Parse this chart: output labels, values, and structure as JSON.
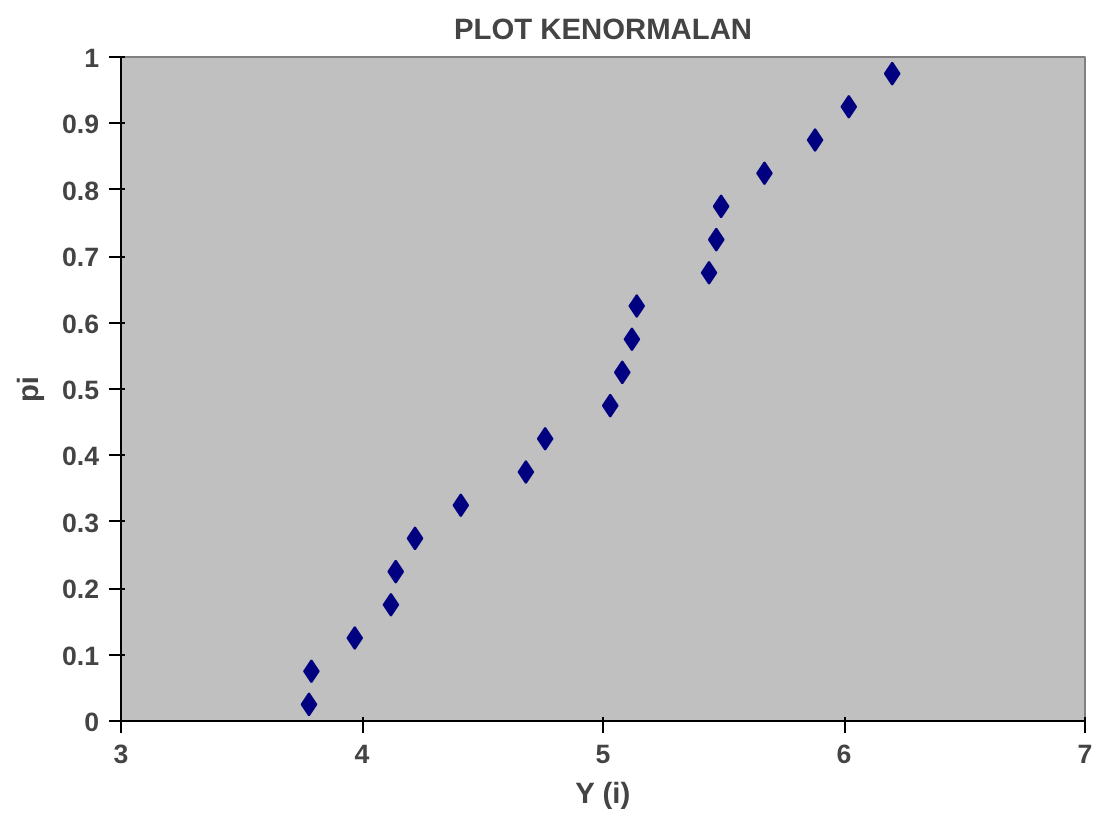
{
  "chart_data": {
    "type": "scatter",
    "title": "PLOT KENORMALAN",
    "xlabel": "Y (i)",
    "ylabel": "pi",
    "x": [
      3.78,
      3.79,
      3.97,
      4.12,
      4.14,
      4.22,
      4.41,
      4.68,
      4.76,
      5.03,
      5.08,
      5.12,
      5.14,
      5.44,
      5.47,
      5.49,
      5.67,
      5.88,
      6.02,
      6.2
    ],
    "series": [
      {
        "color": "#000080",
        "values": [
          0.025,
          0.075,
          0.125,
          0.175,
          0.225,
          0.275,
          0.325,
          0.375,
          0.425,
          0.475,
          0.525,
          0.575,
          0.625,
          0.675,
          0.725,
          0.775,
          0.825,
          0.875,
          0.925,
          0.975
        ]
      }
    ],
    "xlim": [
      3,
      7
    ],
    "xticks": [
      3,
      4,
      5,
      6,
      7
    ],
    "ylim": [
      0,
      1
    ],
    "yticks": [
      0,
      0.1,
      0.2,
      0.3,
      0.4,
      0.5,
      0.6,
      0.7,
      0.8,
      0.9,
      1
    ],
    "grid": false,
    "marker": "diamond"
  }
}
